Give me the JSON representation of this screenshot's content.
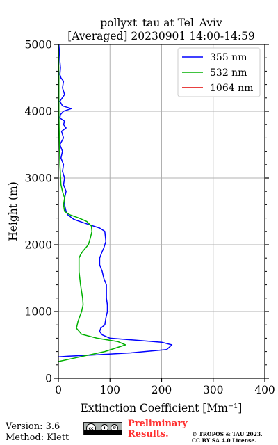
{
  "chart_data": {
    "type": "line",
    "title": "pollyxt_tau at Tel_Aviv",
    "subtitle": "[Averaged] 20230901 14:00-14:59",
    "xlabel": "Extinction Coefficient [Mm⁻¹]",
    "ylabel": "Height (m)",
    "xlim": [
      0,
      400
    ],
    "ylim": [
      0,
      5000
    ],
    "xticks": [
      0,
      100,
      200,
      300,
      400
    ],
    "yticks": [
      0,
      1000,
      2000,
      3000,
      4000,
      5000
    ],
    "grid": true,
    "legend_position": "top-right",
    "series": [
      {
        "name": "355 nm",
        "color": "#0000ff",
        "x": [
          0,
          20,
          60,
          140,
          210,
          220,
          200,
          150,
          100,
          85,
          80,
          82,
          90,
          92,
          95,
          95,
          93,
          93,
          88,
          85,
          80,
          80,
          85,
          88,
          90,
          92,
          90,
          80,
          60,
          30,
          18,
          15,
          12,
          12,
          15,
          10,
          12,
          8,
          10,
          5,
          8,
          3,
          10,
          6,
          15,
          10,
          12,
          3,
          4,
          10,
          25,
          8,
          3,
          12,
          8,
          10,
          5,
          3,
          4,
          3,
          2,
          1
        ],
        "y": [
          320,
          330,
          345,
          380,
          430,
          500,
          540,
          570,
          600,
          650,
          700,
          750,
          800,
          900,
          1000,
          1100,
          1200,
          1400,
          1500,
          1600,
          1700,
          1800,
          1900,
          1950,
          2000,
          2050,
          2200,
          2250,
          2300,
          2380,
          2450,
          2500,
          2600,
          2700,
          2800,
          2900,
          3000,
          3100,
          3200,
          3300,
          3400,
          3500,
          3600,
          3700,
          3750,
          3800,
          3850,
          3900,
          3950,
          4000,
          4040,
          4080,
          4150,
          4250,
          4350,
          4450,
          4500,
          4550,
          4650,
          4750,
          4900,
          5000
        ]
      },
      {
        "name": "532 nm",
        "color": "#00b000",
        "x": [
          0,
          30,
          90,
          130,
          115,
          75,
          45,
          35,
          38,
          45,
          48,
          47,
          45,
          43,
          40,
          40,
          43,
          47,
          58,
          62,
          65,
          64,
          55,
          40,
          22,
          12,
          10,
          12,
          8,
          5,
          3,
          2,
          1,
          1,
          0
        ],
        "y": [
          250,
          300,
          400,
          500,
          550,
          600,
          660,
          750,
          850,
          1000,
          1100,
          1200,
          1300,
          1400,
          1600,
          1800,
          1850,
          1900,
          2000,
          2100,
          2200,
          2280,
          2350,
          2400,
          2450,
          2500,
          2600,
          2700,
          2800,
          2900,
          3200,
          3500,
          4000,
          4500,
          5000
        ]
      },
      {
        "name": "1064 nm",
        "color": "#e00000",
        "x": [],
        "y": []
      }
    ]
  },
  "footer": {
    "version": "Version: 3.6",
    "method": "Method: Klett",
    "preliminary_line1": "Preliminary",
    "preliminary_line2": "Results.",
    "copyright_line1": "© TROPOS & TAU 2023.",
    "copyright_line2": "CC BY SA 4.0 License.",
    "license_badge": [
      "cc",
      "i",
      "©"
    ]
  }
}
